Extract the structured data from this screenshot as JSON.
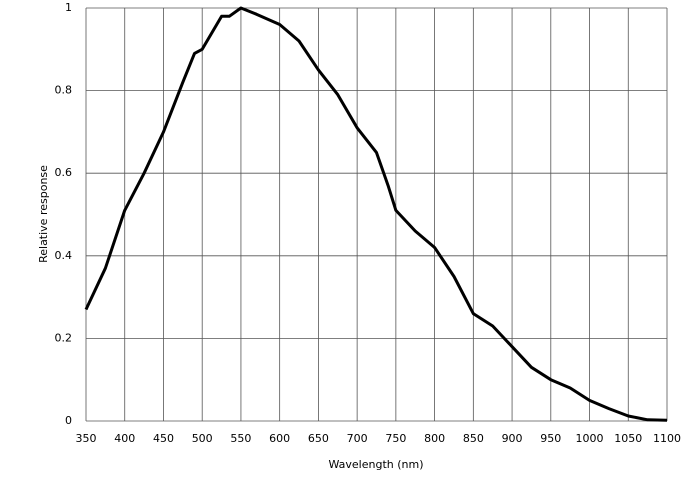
{
  "chart_data": {
    "type": "line",
    "x_label": "Wavelength (nm)",
    "y_label": "Relative response",
    "x": [
      350,
      375,
      400,
      425,
      450,
      475,
      490,
      500,
      525,
      535,
      550,
      570,
      600,
      625,
      650,
      675,
      700,
      725,
      740,
      750,
      775,
      800,
      825,
      850,
      875,
      900,
      925,
      950,
      975,
      1000,
      1025,
      1050,
      1075,
      1100
    ],
    "series": [
      {
        "color": "#000000",
        "values": [
          0.27,
          0.37,
          0.51,
          0.6,
          0.7,
          0.82,
          0.89,
          0.9,
          0.98,
          0.98,
          1.0,
          0.985,
          0.96,
          0.92,
          0.85,
          0.79,
          0.71,
          0.65,
          0.57,
          0.51,
          0.46,
          0.42,
          0.35,
          0.26,
          0.23,
          0.18,
          0.13,
          0.1,
          0.08,
          0.05,
          0.03,
          0.012,
          0.003,
          0.002
        ]
      }
    ],
    "xlim": [
      350,
      1100
    ],
    "xticks": [
      350,
      400,
      450,
      500,
      550,
      600,
      650,
      700,
      750,
      800,
      850,
      900,
      950,
      1000,
      1050,
      1100
    ],
    "ylim": [
      0,
      1
    ],
    "yticks": [
      0,
      0.2,
      0.4,
      0.6,
      0.8,
      1
    ],
    "grid": true
  }
}
